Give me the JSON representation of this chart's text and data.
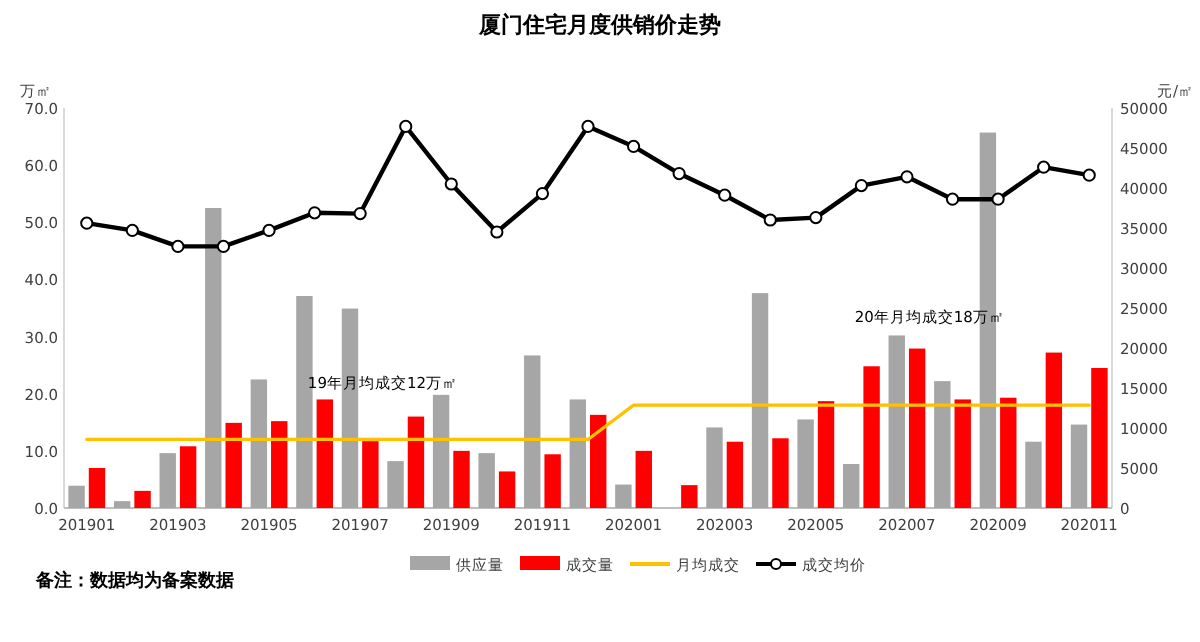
{
  "chart_data": {
    "type": "bar",
    "title": "厦门住宅月度供销价走势",
    "ylabel": "万㎡",
    "y2label": "元/㎡",
    "categories": [
      "201901",
      null,
      "201903",
      null,
      "201905",
      null,
      "201907",
      null,
      "201909",
      null,
      "201911",
      null,
      "202001",
      null,
      "202003",
      null,
      "202005",
      null,
      "202007",
      null,
      "202009",
      null,
      "202011"
    ],
    "series": [
      {
        "name": "供应量",
        "color": "#a6a6a6",
        "values": [
          3.9,
          1.2,
          9.6,
          52.5,
          22.5,
          37.1,
          34.9,
          8.2,
          19.8,
          9.6,
          26.7,
          19.0,
          4.1,
          null,
          14.1,
          37.6,
          15.5,
          7.7,
          30.2,
          22.2,
          65.7,
          11.6,
          14.6
        ]
      },
      {
        "name": "成交量",
        "color": "#ff0000",
        "values": [
          7.0,
          3.0,
          10.8,
          14.9,
          15.2,
          19.0,
          11.7,
          16.0,
          10.0,
          6.4,
          9.4,
          16.3,
          10.0,
          4.0,
          11.6,
          12.2,
          18.7,
          24.8,
          27.9,
          19.0,
          19.3,
          27.2,
          24.5
        ]
      },
      {
        "name": "月均成交",
        "type": "line",
        "color": "#ffc000",
        "values": [
          12,
          12,
          12,
          12,
          12,
          12,
          12,
          12,
          12,
          12,
          12,
          12,
          18,
          18,
          18,
          18,
          18,
          18,
          18,
          18,
          18,
          18,
          18
        ]
      },
      {
        "name": "成交均价",
        "type": "line",
        "axis": "y2",
        "marker": "circle",
        "color": "#000000",
        "values": [
          35600,
          34700,
          32700,
          32700,
          34700,
          36900,
          36800,
          47700,
          40500,
          34500,
          39300,
          47700,
          45200,
          41800,
          39100,
          36000,
          36300,
          40300,
          41400,
          38600,
          38600,
          42600,
          41600
        ]
      }
    ],
    "ylim": [
      0,
      70
    ],
    "yticks": [
      {
        "value": 0,
        "label": "0.0"
      },
      {
        "value": 10,
        "label": "10.0"
      },
      {
        "value": 20,
        "label": "20.0"
      },
      {
        "value": 30,
        "label": "30.0"
      },
      {
        "value": 40,
        "label": "40.0"
      },
      {
        "value": 50,
        "label": "50.0"
      },
      {
        "value": 60,
        "label": "60.0"
      },
      {
        "value": 70,
        "label": "70.0"
      }
    ],
    "y2lim": [
      0,
      50000
    ],
    "y2ticks": [
      0,
      5000,
      10000,
      15000,
      20000,
      25000,
      30000,
      35000,
      40000,
      45000,
      50000
    ],
    "annotations": [
      "19年月均成交12万㎡",
      "20年月均成交18万㎡",
      "备注：数据均为备案数据"
    ],
    "legend": "bottom"
  }
}
